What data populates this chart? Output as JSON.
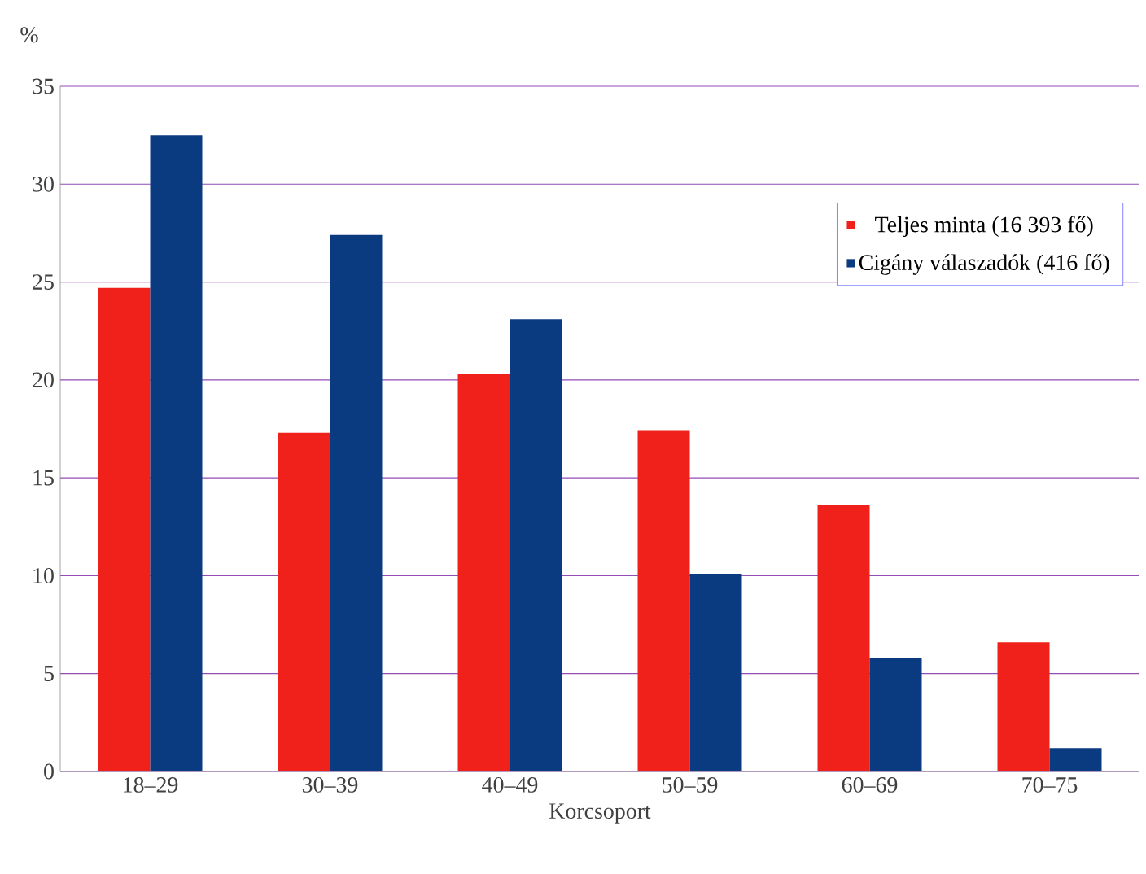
{
  "chart_data": {
    "type": "bar",
    "xlabel": "Korcsoport",
    "ylabel": "%",
    "categories": [
      "18–29",
      "30–39",
      "40–49",
      "50–59",
      "60–69",
      "70–75"
    ],
    "series": [
      {
        "name": "Teljes minta (16 393 fő)",
        "color": "#f0201a",
        "values": [
          24.7,
          17.3,
          20.3,
          17.4,
          13.6,
          6.6
        ]
      },
      {
        "name": "Cigány válaszadók (416 fő)",
        "color": "#0a3a80",
        "values": [
          32.5,
          27.4,
          23.1,
          10.1,
          5.8,
          1.2
        ]
      }
    ],
    "ylim": [
      0,
      35
    ],
    "yticks": [
      0,
      5,
      10,
      15,
      20,
      25,
      30,
      35
    ],
    "grid": "y",
    "legend": "top right"
  }
}
